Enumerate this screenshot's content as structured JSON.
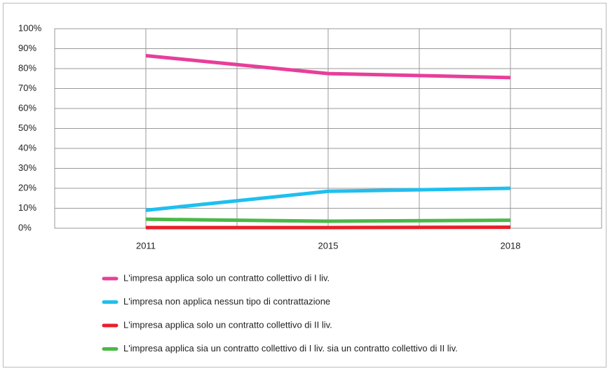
{
  "chart_data": {
    "type": "line",
    "categories": [
      "2011",
      "2015",
      "2018"
    ],
    "series": [
      {
        "name": "L'impresa applica solo un contratto collettivo di I liv.",
        "color": "#e83e9a",
        "values": [
          86.5,
          77.5,
          75.5
        ]
      },
      {
        "name": "L'impresa non applica nessun tipo di contrattazione",
        "color": "#1fbfef",
        "values": [
          9,
          18.5,
          20
        ]
      },
      {
        "name": "L'impresa applica solo un contratto collettivo di II liv.",
        "color": "#e8202a",
        "values": [
          0.3,
          0.3,
          0.5
        ]
      },
      {
        "name": "L'impresa applica sia un contratto collettivo di I liv. sia un contratto collettivo di II liv.",
        "color": "#4cb848",
        "values": [
          4.5,
          3.5,
          4
        ]
      }
    ],
    "ylim": [
      0,
      100
    ],
    "yticks": [
      {
        "value": 0,
        "label": "0%"
      },
      {
        "value": 10,
        "label": "10%"
      },
      {
        "value": 20,
        "label": "20%"
      },
      {
        "value": 30,
        "label": "30%"
      },
      {
        "value": 40,
        "label": "40%"
      },
      {
        "value": 50,
        "label": "50%"
      },
      {
        "value": 60,
        "label": "60%"
      },
      {
        "value": 70,
        "label": "70%"
      },
      {
        "value": 80,
        "label": "80%"
      },
      {
        "value": 90,
        "label": "90%"
      },
      {
        "value": 100,
        "label": "100%"
      }
    ],
    "grid": true
  }
}
